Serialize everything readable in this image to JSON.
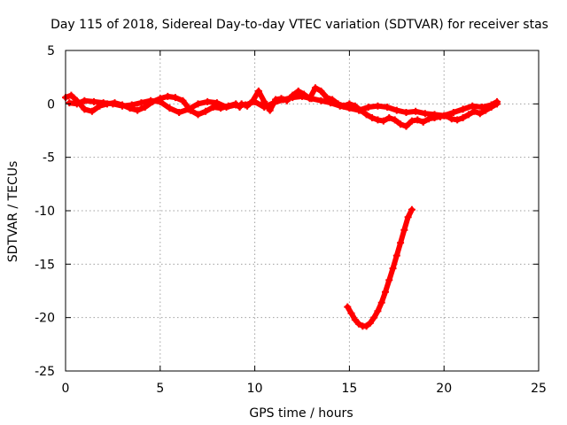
{
  "chart_data": {
    "type": "scatter",
    "title": "Day 115 of 2018, Sidereal Day-to-day VTEC variation (SDTVAR) for receiver stas",
    "xlabel": "GPS time / hours",
    "ylabel": "SDTVAR / TECUs",
    "xlim": [
      0,
      25
    ],
    "ylim": [
      -25,
      5
    ],
    "xticks": [
      0,
      5,
      10,
      15,
      20,
      25
    ],
    "yticks": [
      5,
      0,
      -5,
      -10,
      -15,
      -20,
      -25
    ],
    "grid": true,
    "series_color": "#ff0000",
    "series": [
      {
        "name": "trace-a",
        "x": [
          0.0,
          0.3,
          0.6,
          1.0,
          1.4,
          1.8,
          2.2,
          2.6,
          3.0,
          3.4,
          3.8,
          4.2,
          4.6,
          5.0,
          5.4,
          5.8,
          6.2,
          6.6,
          7.0,
          7.4,
          7.8,
          8.2,
          8.6,
          9.0,
          9.2
        ],
        "y": [
          0.6,
          0.8,
          0.3,
          -0.5,
          -0.7,
          -0.2,
          0.0,
          0.1,
          -0.1,
          -0.4,
          -0.6,
          -0.3,
          0.2,
          0.5,
          0.7,
          0.6,
          0.3,
          -0.6,
          -1.0,
          -0.7,
          -0.3,
          -0.4,
          -0.2,
          0.0,
          -0.3
        ]
      },
      {
        "name": "trace-b",
        "x": [
          0.2,
          0.6,
          1.0,
          1.5,
          2.0,
          2.5,
          3.0,
          3.5,
          4.0,
          4.5,
          5.0,
          5.5,
          6.0,
          6.5,
          7.0,
          7.5,
          8.0,
          8.5,
          9.0
        ],
        "y": [
          0.1,
          0.0,
          0.3,
          0.2,
          0.1,
          0.0,
          -0.2,
          -0.1,
          0.1,
          0.3,
          0.2,
          -0.4,
          -0.8,
          -0.5,
          0.0,
          0.2,
          0.1,
          -0.3,
          -0.1
        ]
      },
      {
        "name": "trace-c",
        "x": [
          9.3,
          9.6,
          9.9,
          10.2,
          10.5,
          10.8,
          11.1,
          11.4,
          11.7,
          12.0,
          12.3,
          12.6,
          12.9,
          13.2,
          13.5,
          13.8,
          14.1,
          14.4,
          14.7,
          15.0,
          15.3,
          15.6,
          15.9,
          16.2,
          16.5,
          16.8,
          17.1,
          17.4,
          17.7,
          18.0,
          18.3,
          18.6,
          18.9,
          19.2,
          19.5,
          19.8,
          20.1,
          20.4,
          20.7,
          21.0,
          21.3,
          21.6,
          21.9,
          22.2,
          22.5,
          22.8
        ],
        "y": [
          0.0,
          -0.2,
          0.3,
          1.2,
          0.2,
          -0.6,
          0.4,
          0.5,
          0.3,
          0.8,
          1.2,
          0.9,
          0.5,
          1.5,
          1.2,
          0.6,
          0.4,
          0.0,
          -0.2,
          0.0,
          -0.2,
          -0.6,
          -1.0,
          -1.3,
          -1.5,
          -1.6,
          -1.3,
          -1.5,
          -1.9,
          -2.1,
          -1.6,
          -1.5,
          -1.7,
          -1.4,
          -1.3,
          -1.2,
          -1.1,
          -1.4,
          -1.5,
          -1.3,
          -1.0,
          -0.7,
          -0.9,
          -0.6,
          -0.3,
          0.0
        ]
      },
      {
        "name": "trace-d",
        "x": [
          9.5,
          10.0,
          10.5,
          11.0,
          11.5,
          12.0,
          12.5,
          13.0,
          13.5,
          14.0,
          14.5,
          15.0,
          15.5,
          16.0,
          16.5,
          17.0,
          17.5,
          18.0,
          18.5,
          19.0,
          19.5,
          20.0,
          20.5,
          21.0,
          21.5,
          22.0,
          22.5,
          22.8
        ],
        "y": [
          -0.1,
          0.2,
          -0.3,
          0.1,
          0.4,
          0.6,
          0.7,
          0.5,
          0.3,
          0.1,
          -0.2,
          -0.4,
          -0.6,
          -0.3,
          -0.2,
          -0.3,
          -0.6,
          -0.8,
          -0.7,
          -0.9,
          -1.0,
          -1.1,
          -0.8,
          -0.5,
          -0.2,
          -0.3,
          -0.1,
          0.2
        ]
      },
      {
        "name": "trace-e",
        "x": [
          14.9,
          15.1,
          15.3,
          15.5,
          15.7,
          15.9,
          16.1,
          16.3,
          16.5,
          16.7,
          16.9,
          17.1,
          17.3,
          17.5,
          17.7,
          17.9,
          18.1,
          18.3
        ],
        "y": [
          -19.0,
          -19.6,
          -20.2,
          -20.6,
          -20.8,
          -20.8,
          -20.5,
          -20.0,
          -19.4,
          -18.6,
          -17.6,
          -16.5,
          -15.4,
          -14.2,
          -13.0,
          -11.8,
          -10.6,
          -9.9
        ]
      }
    ]
  }
}
